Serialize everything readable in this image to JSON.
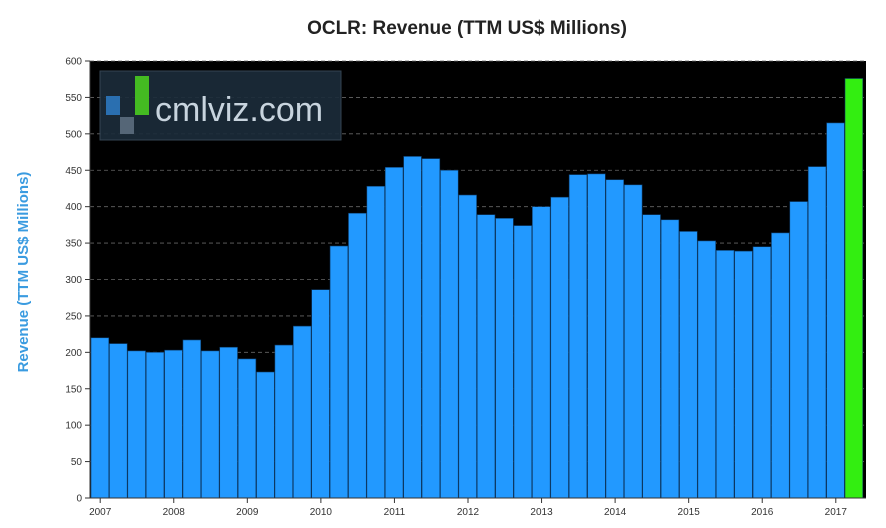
{
  "chart_data": {
    "type": "bar",
    "title": "OCLR: Revenue (TTM US$ Millions)",
    "xlabel": "",
    "ylabel": "Revenue (TTM US$ Millions)",
    "ylim": [
      0,
      600
    ],
    "yticks": [
      0,
      50,
      100,
      150,
      200,
      250,
      300,
      350,
      400,
      450,
      500,
      550,
      600
    ],
    "xtick_labels": [
      "2007",
      "2008",
      "2009",
      "2010",
      "2011",
      "2012",
      "2013",
      "2014",
      "2015",
      "2016",
      "2017"
    ],
    "grid": true,
    "values": [
      220,
      212,
      202,
      200,
      203,
      217,
      202,
      207,
      191,
      173,
      210,
      236,
      286,
      346,
      391,
      428,
      454,
      469,
      466,
      450,
      416,
      389,
      384,
      374,
      400,
      413,
      444,
      445,
      437,
      430,
      389,
      382,
      366,
      353,
      340,
      339,
      345,
      364,
      407,
      455,
      515,
      576
    ],
    "highlight_index": 41,
    "colors": {
      "bar": "#2299ff",
      "highlight": "#33ee11",
      "plot_background": "#000000",
      "ylabel": "#3a9be0"
    }
  },
  "watermark": {
    "text": "cmlviz.com"
  }
}
